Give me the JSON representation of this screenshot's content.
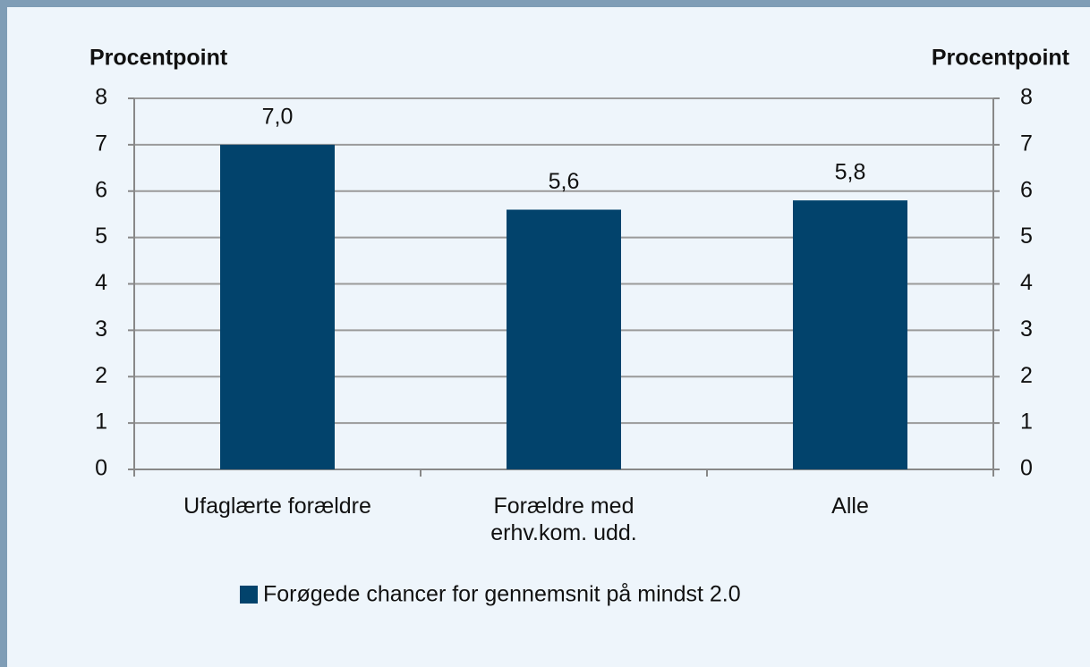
{
  "chart_data": {
    "type": "bar",
    "y_axis_title": "Procentpoint",
    "y2_axis_title": "Procentpoint",
    "categories": [
      "Ufaglærte forældre",
      "Forældre med\nerhv.kom. udd.",
      "Alle"
    ],
    "series": [
      {
        "name": "Forøgede chancer for gennemsnit på mindst 2.0",
        "color": "#02436c",
        "values": [
          7.0,
          5.6,
          5.8
        ],
        "value_labels": [
          "7,0",
          "5,6",
          "5,8"
        ]
      }
    ],
    "ylim": [
      0,
      8
    ],
    "yticks": [
      0,
      1,
      2,
      3,
      4,
      5,
      6,
      7,
      8
    ],
    "y2lim": [
      0,
      8
    ],
    "y2ticks": [
      0,
      1,
      2,
      3,
      4,
      5,
      6,
      7,
      8
    ],
    "grid": true,
    "legend": "bottom"
  }
}
